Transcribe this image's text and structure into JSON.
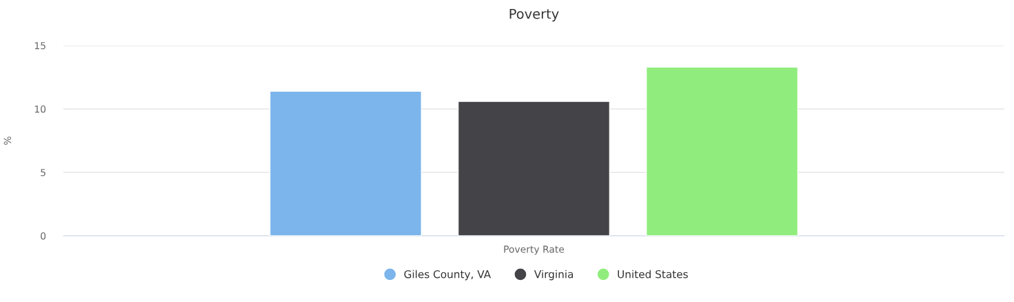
{
  "chart_data": {
    "type": "bar",
    "title": "Poverty",
    "ylabel": "%",
    "categories": [
      "Poverty Rate"
    ],
    "series": [
      {
        "name": "Giles County, VA",
        "color": "#7cb5ec",
        "values": [
          11.4
        ]
      },
      {
        "name": "Virginia",
        "color": "#434348",
        "values": [
          10.6
        ]
      },
      {
        "name": "United States",
        "color": "#90ed7d",
        "values": [
          13.3
        ]
      }
    ],
    "ylim": [
      0,
      15
    ],
    "yticks": [
      0,
      5,
      10,
      15
    ],
    "grid": "y",
    "legend": "bottom"
  }
}
